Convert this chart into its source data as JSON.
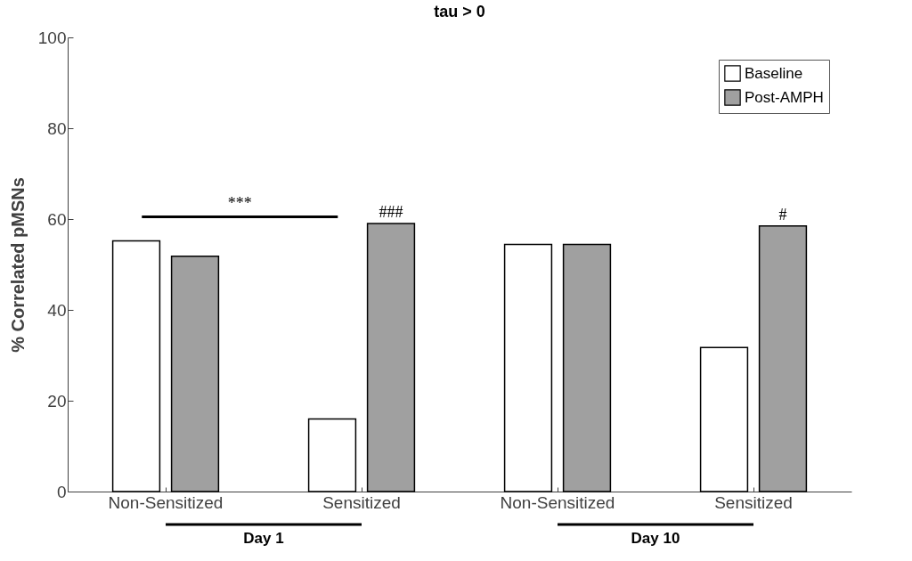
{
  "chart_data": {
    "type": "bar",
    "title": "tau > 0",
    "ylabel": "% Correlated pMSNs",
    "categories": [
      "Non-Sensitized",
      "Sensitized",
      "Non-Sensitized",
      "Sensitized"
    ],
    "series": [
      {
        "name": "Baseline",
        "color": "#ffffff",
        "values": [
          55.2,
          16.0,
          54.4,
          31.7
        ]
      },
      {
        "name": "Post-AMPH",
        "color": "#a0a0a0",
        "values": [
          51.8,
          59.0,
          54.4,
          58.5
        ],
        "value_labels": [
          null,
          "###",
          null,
          "#"
        ]
      }
    ],
    "ylim": [
      0,
      100
    ],
    "yticks": [
      0,
      20,
      40,
      60,
      80,
      100
    ],
    "grid": false,
    "legend": "top right",
    "annotations": [
      "***",
      "Day 1",
      "Day 10"
    ]
  }
}
